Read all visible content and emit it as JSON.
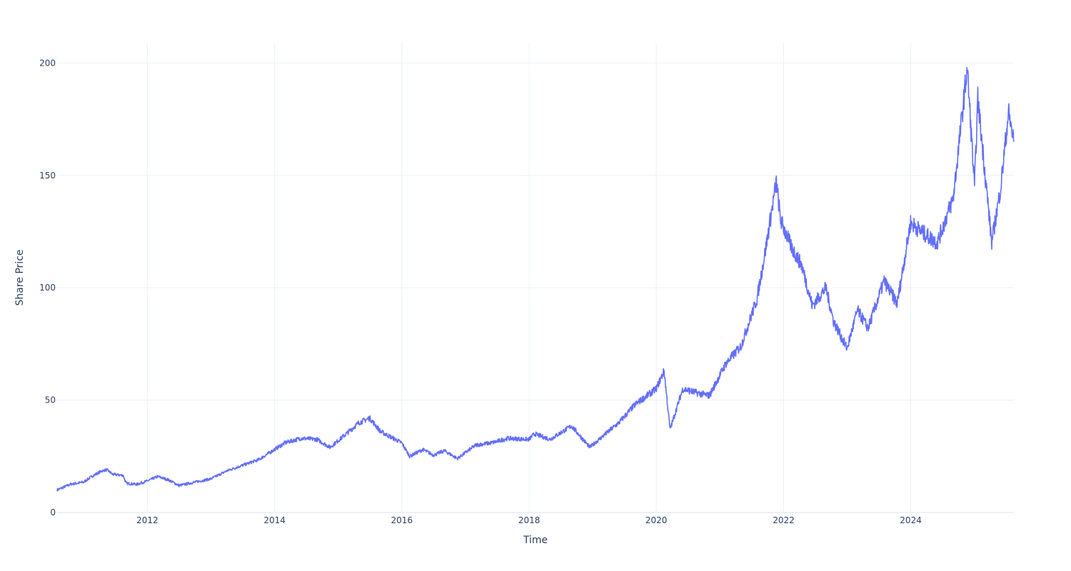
{
  "chart_data": {
    "type": "line",
    "xlabel": "Time",
    "ylabel": "Share Price",
    "xlim": [
      "2010-08-01",
      "2025-08-15"
    ],
    "ylim": [
      0,
      209
    ],
    "x_ticks": [
      "2012",
      "2014",
      "2016",
      "2018",
      "2020",
      "2022",
      "2024"
    ],
    "y_ticks": [
      0,
      50,
      100,
      150,
      200
    ],
    "grid": true,
    "legend": "none",
    "line_color": "#636efa",
    "series": [
      {
        "points": [
          [
            "2010-08-01",
            10.0
          ],
          [
            "2010-10-15",
            12.5
          ],
          [
            "2010-12-31",
            13.5
          ],
          [
            "2011-02-15",
            16.0
          ],
          [
            "2011-04-15",
            18.5
          ],
          [
            "2011-05-15",
            19.0
          ],
          [
            "2011-06-15",
            17.0
          ],
          [
            "2011-08-15",
            16.5
          ],
          [
            "2011-09-01",
            13.0
          ],
          [
            "2011-11-01",
            12.5
          ],
          [
            "2011-12-31",
            14.0
          ],
          [
            "2012-03-01",
            16.0
          ],
          [
            "2012-05-01",
            14.5
          ],
          [
            "2012-07-01",
            12.0
          ],
          [
            "2012-10-01",
            13.5
          ],
          [
            "2013-01-01",
            15.0
          ],
          [
            "2013-04-01",
            18.5
          ],
          [
            "2013-07-01",
            21.0
          ],
          [
            "2013-10-01",
            23.5
          ],
          [
            "2013-12-31",
            28.0
          ],
          [
            "2014-03-01",
            31.0
          ],
          [
            "2014-06-01",
            33.0
          ],
          [
            "2014-09-01",
            32.5
          ],
          [
            "2014-11-15",
            29.0
          ],
          [
            "2015-02-01",
            34.0
          ],
          [
            "2015-05-01",
            40.0
          ],
          [
            "2015-07-01",
            42.0
          ],
          [
            "2015-09-01",
            36.0
          ],
          [
            "2015-12-31",
            31.0
          ],
          [
            "2016-02-15",
            25.0
          ],
          [
            "2016-05-01",
            28.0
          ],
          [
            "2016-07-01",
            25.5
          ],
          [
            "2016-09-01",
            27.5
          ],
          [
            "2016-11-15",
            24.0
          ],
          [
            "2017-03-01",
            30.0
          ],
          [
            "2017-06-01",
            31.0
          ],
          [
            "2017-09-01",
            33.0
          ],
          [
            "2017-12-31",
            32.5
          ],
          [
            "2018-02-01",
            35.0
          ],
          [
            "2018-05-01",
            32.5
          ],
          [
            "2018-09-01",
            38.5
          ],
          [
            "2018-12-15",
            29.0
          ],
          [
            "2019-03-01",
            34.0
          ],
          [
            "2019-06-01",
            40.0
          ],
          [
            "2019-09-01",
            48.0
          ],
          [
            "2019-12-31",
            55.0
          ],
          [
            "2020-02-15",
            63.0
          ],
          [
            "2020-03-20",
            37.0
          ],
          [
            "2020-06-01",
            55.0
          ],
          [
            "2020-09-01",
            53.0
          ],
          [
            "2020-11-01",
            52.0
          ],
          [
            "2021-02-01",
            66.0
          ],
          [
            "2021-05-01",
            74.0
          ],
          [
            "2021-08-01",
            95.0
          ],
          [
            "2021-09-15",
            115.0
          ],
          [
            "2021-11-20",
            147.0
          ],
          [
            "2021-12-15",
            130.0
          ],
          [
            "2022-02-15",
            118.0
          ],
          [
            "2022-04-15",
            110.0
          ],
          [
            "2022-06-15",
            92.0
          ],
          [
            "2022-09-01",
            100.0
          ],
          [
            "2022-10-15",
            85.0
          ],
          [
            "2022-12-31",
            73.0
          ],
          [
            "2023-03-01",
            90.0
          ],
          [
            "2023-05-01",
            82.0
          ],
          [
            "2023-08-01",
            103.0
          ],
          [
            "2023-10-15",
            93.0
          ],
          [
            "2023-12-31",
            129.0
          ],
          [
            "2024-03-01",
            125.0
          ],
          [
            "2024-06-01",
            120.0
          ],
          [
            "2024-09-01",
            140.0
          ],
          [
            "2024-11-20",
            198.0
          ],
          [
            "2025-01-01",
            145.0
          ],
          [
            "2025-01-20",
            184.0
          ],
          [
            "2025-04-10",
            120.0
          ],
          [
            "2025-06-01",
            145.0
          ],
          [
            "2025-07-15",
            178.0
          ],
          [
            "2025-08-15",
            165.0
          ]
        ]
      }
    ]
  }
}
